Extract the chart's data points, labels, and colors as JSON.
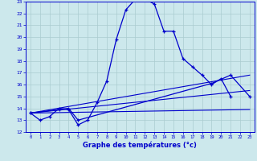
{
  "xlabel": "Graphe des températures (°c)",
  "x_ticks": [
    0,
    1,
    2,
    3,
    4,
    5,
    6,
    7,
    8,
    9,
    10,
    11,
    12,
    13,
    14,
    15,
    16,
    17,
    18,
    19,
    20,
    21,
    22,
    23
  ],
  "ylim": [
    12,
    23
  ],
  "yticks": [
    12,
    13,
    14,
    15,
    16,
    17,
    18,
    19,
    20,
    21,
    22,
    23
  ],
  "bg_color": "#cce8ec",
  "grid_color": "#aaccd0",
  "line_color": "#0000cc",
  "curve_main_x": [
    0,
    1,
    2,
    3,
    4,
    5,
    6,
    7,
    8,
    9,
    10,
    11,
    12,
    13,
    14,
    15,
    16,
    17,
    18,
    19,
    20,
    21
  ],
  "curve_main_y": [
    13.6,
    13.0,
    13.3,
    14.0,
    13.9,
    12.6,
    13.0,
    14.5,
    16.3,
    19.8,
    22.3,
    23.2,
    23.2,
    22.8,
    20.5,
    20.5,
    18.2,
    17.5,
    16.8,
    16.0,
    16.5,
    15.0
  ],
  "curve2_x": [
    0,
    3,
    4,
    5,
    19,
    21,
    23
  ],
  "curve2_y": [
    13.6,
    13.9,
    14.0,
    13.0,
    16.1,
    16.8,
    15.0
  ],
  "line1_x": [
    0,
    23
  ],
  "line1_y": [
    13.6,
    13.9
  ],
  "line2_x": [
    0,
    23
  ],
  "line2_y": [
    13.6,
    15.5
  ],
  "line3_x": [
    0,
    23
  ],
  "line3_y": [
    13.6,
    16.8
  ]
}
